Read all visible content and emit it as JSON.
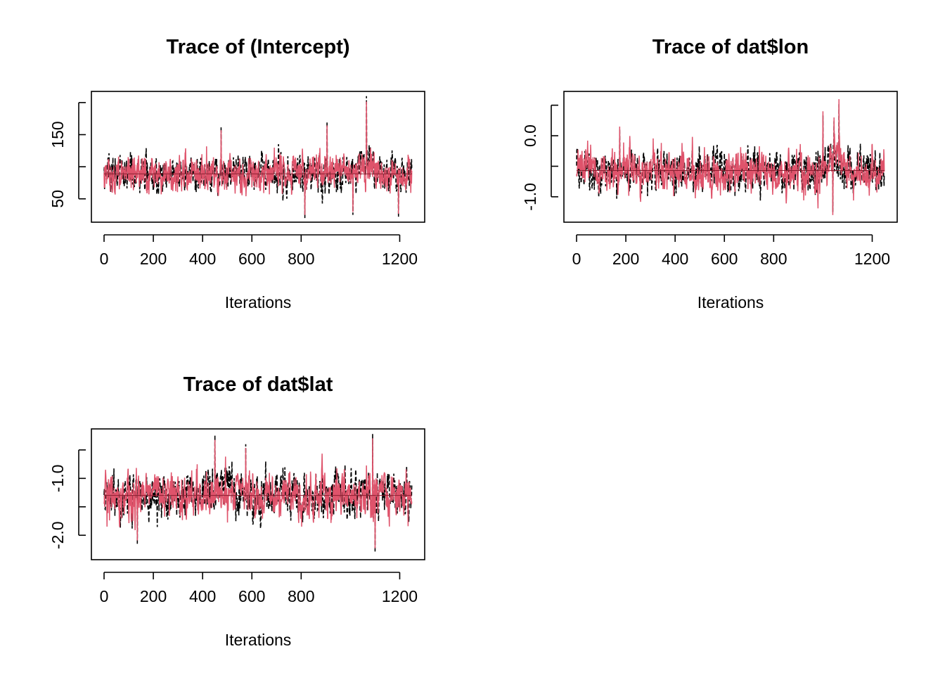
{
  "figure": {
    "background": "#ffffff"
  },
  "chart_data": [
    {
      "type": "line",
      "title": "Trace of (Intercept)",
      "xlabel": "Iterations",
      "ylabel": "",
      "xlim": [
        0,
        1250
      ],
      "ylim": [
        18,
        213
      ],
      "x_ticks": [
        0,
        200,
        400,
        600,
        800,
        1200
      ],
      "x_tick_labels": [
        "0",
        "200",
        "400",
        "600",
        "800",
        "1200"
      ],
      "y_ticks": [
        50,
        100,
        150,
        200
      ],
      "y_tick_labels": [
        "50",
        "",
        "150",
        ""
      ],
      "grid": false,
      "legend": "none",
      "n_iterations": 1250,
      "series": [
        {
          "color": "#000000",
          "dash": "dashed",
          "mean": 90,
          "spread": 14,
          "min": 20,
          "max": 205
        },
        {
          "color": "#DF536B",
          "dash": "solid",
          "mean": 90,
          "spread": 14,
          "min": 20,
          "max": 212
        }
      ],
      "mean_line": 89,
      "spikes": [
        {
          "x": 475,
          "y": 162
        },
        {
          "x": 1065,
          "y": 210
        },
        {
          "x": 905,
          "y": 170
        },
        {
          "x": 815,
          "y": 20
        },
        {
          "x": 1010,
          "y": 25
        },
        {
          "x": 1195,
          "y": 22
        }
      ],
      "elevated_segments": [
        {
          "from": 1000,
          "to": 1100,
          "shift": 14
        }
      ]
    },
    {
      "type": "line",
      "title": "Trace of dat$lon",
      "xlabel": "Iterations",
      "ylabel": "",
      "xlim": [
        0,
        1250
      ],
      "ylim": [
        -1.37,
        0.68
      ],
      "x_ticks": [
        0,
        200,
        400,
        600,
        800,
        1200
      ],
      "x_tick_labels": [
        "0",
        "200",
        "400",
        "600",
        "800",
        "1200"
      ],
      "y_ticks": [
        -1.0,
        -0.5,
        0.0,
        0.5
      ],
      "y_tick_labels": [
        "-1.0",
        "",
        "0.0",
        ""
      ],
      "grid": false,
      "legend": "none",
      "n_iterations": 1250,
      "series": [
        {
          "color": "#000000",
          "dash": "dashed",
          "mean": -0.58,
          "spread": 0.16,
          "min": -1.2,
          "max": 0.55
        },
        {
          "color": "#DF536B",
          "dash": "solid",
          "mean": -0.58,
          "spread": 0.16,
          "min": -1.3,
          "max": 0.6
        }
      ],
      "mean_line": -0.57,
      "spikes": [
        {
          "x": 1065,
          "y": 0.6
        },
        {
          "x": 1000,
          "y": 0.4
        },
        {
          "x": 1045,
          "y": 0.3
        },
        {
          "x": 1040,
          "y": -1.3
        },
        {
          "x": 175,
          "y": 0.15
        }
      ],
      "elevated_segments": [
        {
          "from": 1000,
          "to": 1100,
          "shift": 0.18
        }
      ]
    },
    {
      "type": "line",
      "title": "Trace of dat$lat",
      "xlabel": "Iterations",
      "ylabel": "",
      "xlim": [
        0,
        1250
      ],
      "ylim": [
        -2.38,
        -0.18
      ],
      "x_ticks": [
        0,
        200,
        400,
        600,
        800,
        1200
      ],
      "x_tick_labels": [
        "0",
        "200",
        "400",
        "600",
        "800",
        "1200"
      ],
      "y_ticks": [
        -2.0,
        -1.5,
        -1.0,
        -0.5
      ],
      "y_tick_labels": [
        "-2.0",
        "",
        "-1.0",
        ""
      ],
      "grid": false,
      "legend": "none",
      "n_iterations": 1250,
      "series": [
        {
          "color": "#000000",
          "dash": "dashed",
          "mean": -1.3,
          "spread": 0.19,
          "min": -2.2,
          "max": -0.25
        },
        {
          "color": "#DF536B",
          "dash": "solid",
          "mean": -1.3,
          "spread": 0.19,
          "min": -2.3,
          "max": -0.3
        }
      ],
      "mean_line": -1.3,
      "spikes": [
        {
          "x": 450,
          "y": -0.25
        },
        {
          "x": 1090,
          "y": -0.22
        },
        {
          "x": 1100,
          "y": -2.3
        },
        {
          "x": 135,
          "y": -2.15
        },
        {
          "x": 575,
          "y": -0.4
        }
      ],
      "elevated_segments": [
        {
          "from": 400,
          "to": 600,
          "shift": 0.1
        }
      ]
    }
  ]
}
